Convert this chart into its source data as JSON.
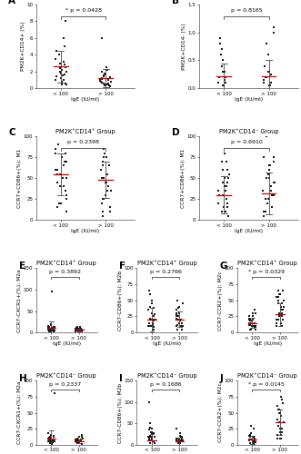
{
  "panels": [
    {
      "label": "A",
      "title": "",
      "ylabel": "PM2K+CD14+ (%)",
      "ylabel_parts": [
        "PM2K",
        "+",
        "CD14",
        "+",
        " (%)"
      ],
      "pval": "* p = 0.0428",
      "pval_star": true,
      "ylim": [
        0,
        10
      ],
      "yticks": [
        0,
        2,
        4,
        6,
        8,
        10
      ],
      "group1": [
        0.5,
        1.0,
        0.8,
        1.2,
        2.0,
        1.5,
        3.0,
        2.5,
        2.0,
        4.0,
        5.0,
        1.8,
        2.2,
        0.6,
        3.5,
        4.5,
        1.0,
        2.8,
        3.2,
        8.0,
        0.4,
        1.6,
        2.4,
        6.0,
        1.4
      ],
      "group2": [
        0.3,
        0.5,
        1.0,
        1.5,
        2.0,
        0.8,
        1.2,
        0.6,
        1.8,
        2.5,
        0.4,
        1.0,
        0.7,
        1.3,
        0.9,
        2.2,
        1.6,
        0.5,
        1.1,
        6.0,
        0.3,
        0.8,
        1.4,
        0.6,
        0.2
      ],
      "mean1": 2.6,
      "sd1": 1.9,
      "mean2": 1.2,
      "sd2": 1.1
    },
    {
      "label": "B",
      "title": "",
      "ylabel": "PM2K+CD14- (%)",
      "pval": "p = 0.8165",
      "pval_star": false,
      "ylim": [
        0,
        1.5
      ],
      "yticks": [
        0.0,
        0.5,
        1.0,
        1.5
      ],
      "group1": [
        0.05,
        0.1,
        0.15,
        0.3,
        0.5,
        0.7,
        0.8,
        0.2,
        0.4,
        0.6,
        0.1,
        0.3,
        0.2,
        0.05,
        0.9
      ],
      "group2": [
        0.05,
        0.1,
        0.2,
        0.3,
        1.0,
        1.1,
        0.4,
        0.2,
        0.15,
        0.3,
        0.1,
        0.6,
        0.05,
        0.8,
        0.25
      ],
      "mean1": 0.22,
      "sd1": 0.22,
      "mean2": 0.22,
      "sd2": 0.28
    },
    {
      "label": "C",
      "title": "PM2K⁺CD14⁺ Group",
      "ylabel": "CCR7+CD86+(%): M1",
      "pval": "p = 0.2398",
      "pval_star": false,
      "ylim": [
        0,
        100
      ],
      "yticks": [
        0,
        25,
        50,
        75,
        100
      ],
      "group1": [
        10,
        20,
        30,
        40,
        50,
        60,
        70,
        80,
        90,
        55,
        65,
        45,
        35,
        25,
        15,
        75,
        85,
        20,
        60,
        50,
        40,
        30,
        70,
        80,
        55
      ],
      "group2": [
        5,
        15,
        25,
        35,
        45,
        55,
        65,
        75,
        85,
        50,
        60,
        40,
        30,
        20,
        10,
        70,
        80,
        25,
        55,
        45,
        35,
        65,
        75,
        10,
        50
      ],
      "mean1": 55,
      "sd1": 25,
      "mean2": 48,
      "sd2": 22
    },
    {
      "label": "D",
      "title": "PM2K⁺CD14⁻ Group",
      "ylabel": "CCR7+CD86+(%): M1",
      "pval": "p = 0.6910",
      "pval_star": false,
      "ylim": [
        0,
        100
      ],
      "yticks": [
        0,
        25,
        50,
        75,
        100
      ],
      "group1": [
        5,
        10,
        15,
        20,
        30,
        40,
        50,
        60,
        70,
        35,
        45,
        25,
        15,
        80,
        10,
        55,
        20,
        30,
        50,
        45,
        35,
        25,
        60,
        70,
        40
      ],
      "group2": [
        5,
        15,
        25,
        35,
        45,
        55,
        65,
        75,
        50,
        60,
        40,
        30,
        20,
        10,
        100,
        70,
        25,
        55,
        45,
        35,
        65,
        75,
        10,
        50,
        30
      ],
      "mean1": 30,
      "sd1": 22,
      "mean2": 32,
      "sd2": 25
    },
    {
      "label": "E",
      "title": "PM2K⁺CD14⁺ Group",
      "ylabel": "CCR7-CXCR1+(%): M2a",
      "pval": "p = 0.3892",
      "pval_star": false,
      "ylim": [
        0,
        150
      ],
      "yticks": [
        0,
        50,
        100,
        150
      ],
      "group1": [
        2,
        5,
        8,
        10,
        12,
        15,
        20,
        5,
        8,
        3,
        95,
        7,
        12,
        6,
        4,
        18,
        9,
        11,
        6,
        3,
        7,
        14,
        8,
        5,
        10
      ],
      "group2": [
        2,
        4,
        6,
        8,
        10,
        12,
        3,
        5,
        7,
        9,
        4,
        6,
        3,
        8,
        12,
        5,
        7,
        4,
        6,
        8,
        3,
        10,
        5,
        7,
        4
      ],
      "mean1": 10,
      "sd1": 16,
      "mean2": 6,
      "sd2": 3
    },
    {
      "label": "F",
      "title": "PM2K⁺CD14⁺ Group",
      "ylabel": "CCR7-CD86+(%): M2b",
      "pval": "p = 0.2766",
      "pval_star": false,
      "ylim": [
        0,
        100
      ],
      "yticks": [
        0,
        25,
        50,
        75,
        100
      ],
      "group1": [
        5,
        10,
        15,
        20,
        30,
        60,
        40,
        25,
        15,
        10,
        5,
        20,
        35,
        45,
        8,
        12,
        18,
        22,
        28,
        38,
        50,
        65,
        10,
        15,
        20
      ],
      "group2": [
        5,
        10,
        15,
        20,
        30,
        40,
        25,
        15,
        10,
        5,
        20,
        35,
        45,
        8,
        12,
        18,
        22,
        28,
        38,
        50,
        10,
        15,
        20,
        25,
        30
      ],
      "mean1": 20,
      "sd1": 18,
      "mean2": 20,
      "sd2": 12
    },
    {
      "label": "G",
      "title": "PM2K⁺CD14⁺ Group",
      "ylabel": "CCR7-CCR2+(%): M2c",
      "pval": "* p = 0.0329",
      "pval_star": true,
      "ylim": [
        0,
        100
      ],
      "yticks": [
        0,
        25,
        50,
        75,
        100
      ],
      "group1": [
        5,
        10,
        15,
        20,
        25,
        30,
        10,
        15,
        8,
        12,
        18,
        22,
        5,
        35,
        20,
        25,
        30,
        10,
        15,
        20,
        8,
        12,
        18,
        22,
        5
      ],
      "group2": [
        10,
        20,
        30,
        40,
        50,
        60,
        15,
        25,
        35,
        45,
        55,
        65,
        10,
        20,
        30,
        40,
        50,
        60,
        15,
        25,
        35,
        45,
        55,
        65,
        20
      ],
      "mean1": 15,
      "sd1": 8,
      "mean2": 28,
      "sd2": 18
    },
    {
      "label": "H",
      "title": "PM2K⁺CD14⁻ Group",
      "ylabel": "CCR7-CXCR1+(%): M2a",
      "pval": "p = 0.2337",
      "pval_star": false,
      "ylim": [
        0,
        100
      ],
      "yticks": [
        0,
        25,
        50,
        75,
        100
      ],
      "group1": [
        2,
        5,
        8,
        10,
        12,
        80,
        5,
        8,
        3,
        7,
        12,
        6,
        4,
        18,
        9,
        11,
        6,
        3,
        7,
        14,
        8,
        5,
        10,
        15,
        4
      ],
      "group2": [
        2,
        4,
        6,
        8,
        10,
        12,
        3,
        5,
        7,
        9,
        15,
        3,
        8,
        12,
        5,
        7,
        4,
        6,
        8,
        3,
        10,
        5,
        7,
        4,
        6
      ],
      "mean1": 10,
      "sd1": 12,
      "mean2": 6,
      "sd2": 3
    },
    {
      "label": "I",
      "title": "PM2K⁺CD14⁻ Group",
      "ylabel": "CCR7-CD86+(%): M2b",
      "pval": "p = 0.1686",
      "pval_star": false,
      "ylim": [
        0,
        150
      ],
      "yticks": [
        0,
        50,
        100,
        150
      ],
      "group1": [
        5,
        10,
        15,
        20,
        30,
        40,
        25,
        15,
        100,
        5,
        20,
        35,
        8,
        12,
        18,
        22,
        28,
        38,
        50,
        10,
        15,
        20,
        25,
        30,
        10
      ],
      "group2": [
        5,
        10,
        15,
        8,
        12,
        18,
        22,
        28,
        38,
        5,
        10,
        15,
        20,
        8,
        12,
        18,
        5,
        10,
        7,
        9,
        6,
        8,
        12,
        15,
        7
      ],
      "mean1": 10,
      "sd1": 15,
      "mean2": 8,
      "sd2": 8
    },
    {
      "label": "J",
      "title": "PM2K⁺CD14⁻ Group",
      "ylabel": "CCR7-CCR2+(%): M2c",
      "pval": "* p = 0.0145",
      "pval_star": true,
      "ylim": [
        0,
        100
      ],
      "yticks": [
        0,
        25,
        50,
        75,
        100
      ],
      "group1": [
        2,
        5,
        8,
        3,
        7,
        12,
        6,
        4,
        18,
        9,
        11,
        6,
        3,
        7,
        14,
        8,
        5,
        10,
        15,
        4,
        25,
        30,
        5,
        8,
        12
      ],
      "group2": [
        10,
        20,
        30,
        40,
        50,
        60,
        15,
        25,
        35,
        45,
        55,
        10,
        20,
        30,
        40,
        50,
        15,
        25,
        35,
        45,
        55,
        65,
        70,
        75,
        10
      ],
      "mean1": 8,
      "sd1": 6,
      "mean2": 35,
      "sd2": 20
    }
  ],
  "xlabel": "IgE (IU/ml)",
  "group_labels": [
    "< 100",
    "> 100"
  ],
  "dot_color": "#1a1a1a",
  "mean_line_color": "#cc0000",
  "line_color": "#444444",
  "bg_color": "#ffffff",
  "title_fontsize": 4.8,
  "label_fontsize": 4.2,
  "tick_fontsize": 4.0,
  "pval_fontsize": 4.5,
  "panel_label_fontsize": 7.5
}
